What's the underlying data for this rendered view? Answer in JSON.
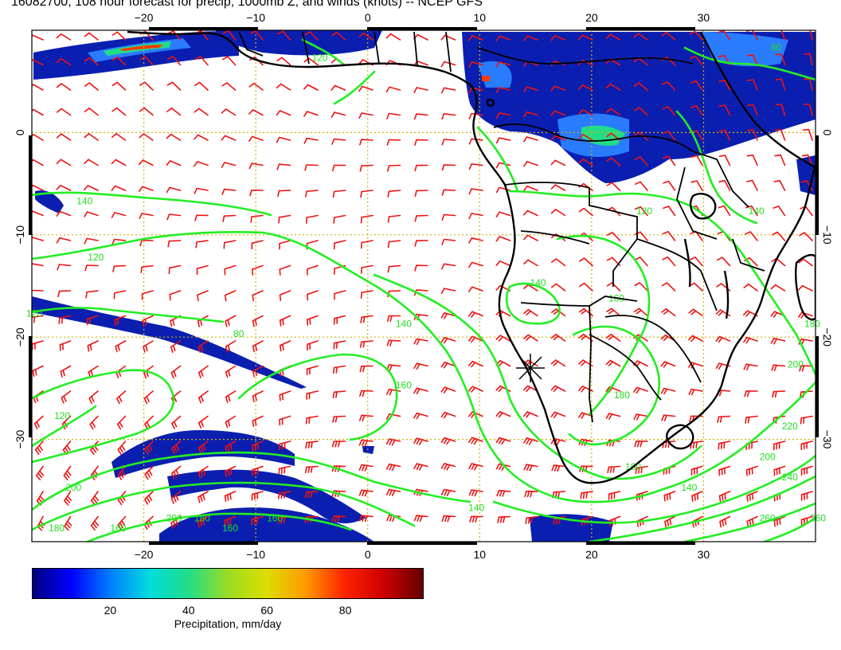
{
  "title": "16082700, 108 hour forecast for precip, 1000mb Z, and winds (knots) -- NCEP GFS",
  "map": {
    "lon_range": [
      -30,
      40
    ],
    "lat_range": [
      -40,
      10
    ],
    "lon_ticks": [
      {
        "value": -20,
        "label": "−20"
      },
      {
        "value": -10,
        "label": "−10"
      },
      {
        "value": 0,
        "label": "0"
      },
      {
        "value": 10,
        "label": "10"
      },
      {
        "value": 20,
        "label": "20"
      },
      {
        "value": 30,
        "label": "30"
      }
    ],
    "lat_ticks": [
      {
        "value": 0,
        "label": "0"
      },
      {
        "value": -10,
        "label": "−10"
      },
      {
        "value": -20,
        "label": "−20"
      },
      {
        "value": -30,
        "label": "−30"
      }
    ],
    "contour_labels": [
      {
        "text": "120",
        "lon": -30.5,
        "lat": -18
      },
      {
        "text": "140",
        "lon": -26,
        "lat": -7
      },
      {
        "text": "120",
        "lon": -25,
        "lat": -12.5
      },
      {
        "text": "80",
        "lon": -12,
        "lat": -20
      },
      {
        "text": "120",
        "lon": -5,
        "lat": 7
      },
      {
        "text": "140",
        "lon": 2.5,
        "lat": -19
      },
      {
        "text": "160",
        "lon": 2.5,
        "lat": -25
      },
      {
        "text": "120",
        "lon": -28,
        "lat": -28
      },
      {
        "text": "200",
        "lon": -27,
        "lat": -35
      },
      {
        "text": "180",
        "lon": -28.5,
        "lat": -39
      },
      {
        "text": "160",
        "lon": -23,
        "lat": -39
      },
      {
        "text": "200",
        "lon": -18,
        "lat": -38
      },
      {
        "text": "180",
        "lon": -15.5,
        "lat": -38
      },
      {
        "text": "160",
        "lon": -9,
        "lat": -38
      },
      {
        "text": "160",
        "lon": -13,
        "lat": -39
      },
      {
        "text": "140",
        "lon": 9,
        "lat": -37
      },
      {
        "text": "140",
        "lon": 14.5,
        "lat": -15
      },
      {
        "text": "160",
        "lon": 21.5,
        "lat": -16.5
      },
      {
        "text": "180",
        "lon": 22,
        "lat": -26
      },
      {
        "text": "160",
        "lon": 23,
        "lat": -33
      },
      {
        "text": "140",
        "lon": 28,
        "lat": -35
      },
      {
        "text": "200",
        "lon": 35,
        "lat": -32
      },
      {
        "text": "220",
        "lon": 37,
        "lat": -29
      },
      {
        "text": "240",
        "lon": 37,
        "lat": -34
      },
      {
        "text": "260",
        "lon": 35,
        "lat": -38
      },
      {
        "text": "260",
        "lon": 39.5,
        "lat": -38
      },
      {
        "text": "180",
        "lon": 39,
        "lat": -19
      },
      {
        "text": "200",
        "lon": 37.5,
        "lat": -23
      },
      {
        "text": "80",
        "lon": 36,
        "lat": 8
      },
      {
        "text": "120",
        "lon": 24,
        "lat": -8
      },
      {
        "text": "140",
        "lon": 34,
        "lat": -8
      }
    ]
  },
  "colorbar": {
    "title": "Precipitation, mm/day",
    "range": [
      0,
      100
    ],
    "ticks": [
      {
        "value": 20,
        "label": "20"
      },
      {
        "value": 40,
        "label": "40"
      },
      {
        "value": 60,
        "label": "60"
      },
      {
        "value": 80,
        "label": "80"
      }
    ],
    "colors": [
      "#000080",
      "#0000ff",
      "#0080ff",
      "#00dddd",
      "#22dd88",
      "#99dd22",
      "#dddd00",
      "#ff9900",
      "#ff2200",
      "#cc0000",
      "#660000"
    ]
  },
  "colors": {
    "contour": "#22ee22",
    "barb": "#ee1111",
    "coast": "#000000",
    "grid": "#d4b200"
  }
}
